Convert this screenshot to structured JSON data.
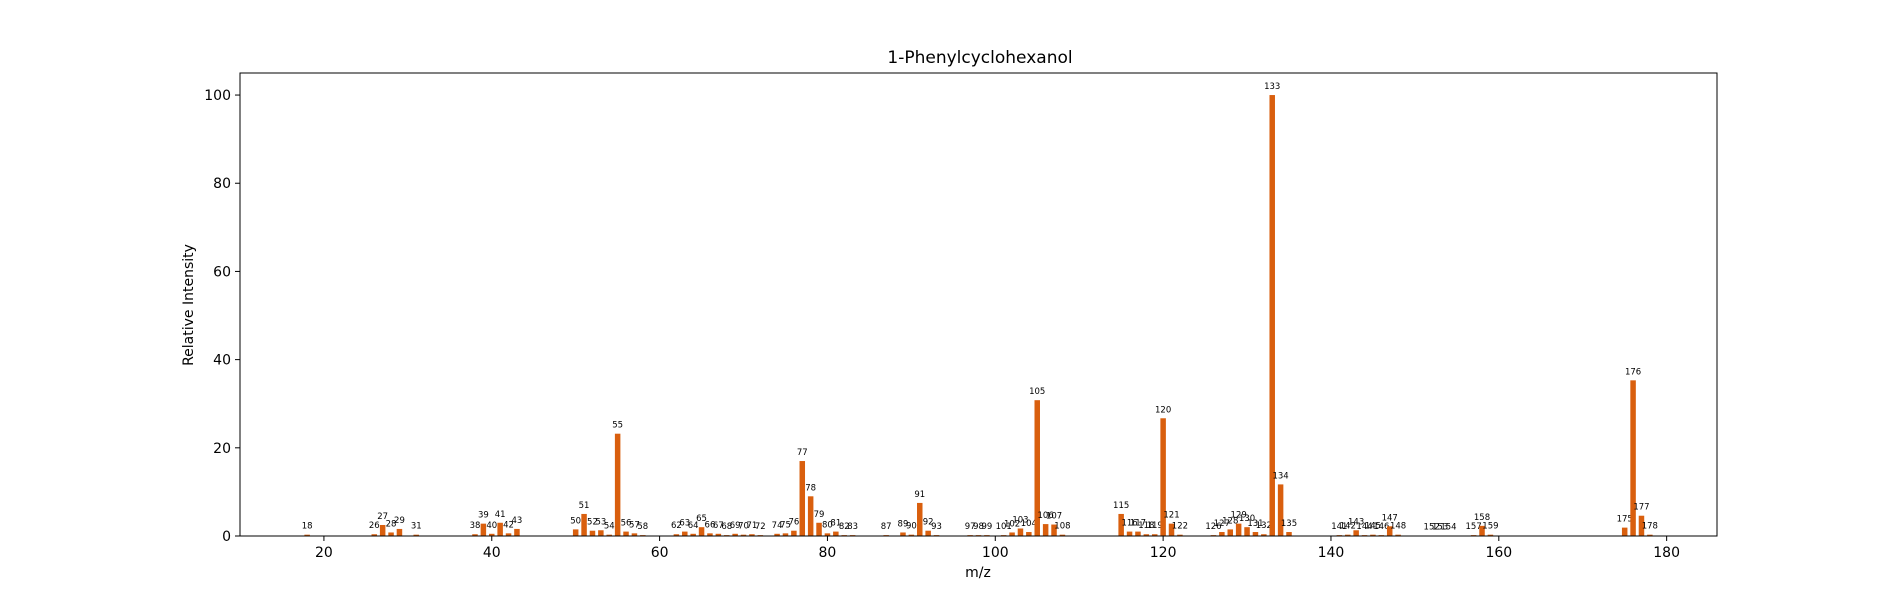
{
  "chart_data": {
    "type": "bar",
    "title": "1-Phenylcyclohexanol",
    "xlabel": "m/z",
    "ylabel": "Relative Intensity",
    "xlim": [
      10,
      186
    ],
    "ylim": [
      0,
      105
    ],
    "xticks": [
      20,
      40,
      60,
      80,
      100,
      120,
      140,
      160,
      180
    ],
    "yticks": [
      0,
      20,
      40,
      60,
      80,
      100
    ],
    "bar_color": "#d95f0e",
    "grid": false,
    "legend": "none",
    "points": [
      {
        "x": 18,
        "y": 0.3
      },
      {
        "x": 26,
        "y": 0.4
      },
      {
        "x": 27,
        "y": 2.5
      },
      {
        "x": 28,
        "y": 0.8
      },
      {
        "x": 29,
        "y": 1.6
      },
      {
        "x": 31,
        "y": 0.3
      },
      {
        "x": 38,
        "y": 0.4
      },
      {
        "x": 39,
        "y": 2.8
      },
      {
        "x": 40,
        "y": 0.5
      },
      {
        "x": 41,
        "y": 3.0
      },
      {
        "x": 42,
        "y": 0.6
      },
      {
        "x": 43,
        "y": 1.6
      },
      {
        "x": 50,
        "y": 1.5
      },
      {
        "x": 51,
        "y": 5.0
      },
      {
        "x": 52,
        "y": 1.2
      },
      {
        "x": 53,
        "y": 1.3
      },
      {
        "x": 54,
        "y": 0.3
      },
      {
        "x": 55,
        "y": 23.2
      },
      {
        "x": 56,
        "y": 1.0
      },
      {
        "x": 57,
        "y": 0.6
      },
      {
        "x": 58,
        "y": 0.2
      },
      {
        "x": 62,
        "y": 0.4
      },
      {
        "x": 63,
        "y": 1.0
      },
      {
        "x": 64,
        "y": 0.5
      },
      {
        "x": 65,
        "y": 2.0
      },
      {
        "x": 66,
        "y": 0.6
      },
      {
        "x": 67,
        "y": 0.5
      },
      {
        "x": 68,
        "y": 0.2
      },
      {
        "x": 69,
        "y": 0.5
      },
      {
        "x": 70,
        "y": 0.3
      },
      {
        "x": 71,
        "y": 0.4
      },
      {
        "x": 72,
        "y": 0.2
      },
      {
        "x": 74,
        "y": 0.5
      },
      {
        "x": 75,
        "y": 0.6
      },
      {
        "x": 76,
        "y": 1.2
      },
      {
        "x": 77,
        "y": 17.0
      },
      {
        "x": 78,
        "y": 9.0
      },
      {
        "x": 79,
        "y": 3.0
      },
      {
        "x": 80,
        "y": 0.6
      },
      {
        "x": 81,
        "y": 1.0
      },
      {
        "x": 82,
        "y": 0.2
      },
      {
        "x": 83,
        "y": 0.2
      },
      {
        "x": 87,
        "y": 0.2
      },
      {
        "x": 89,
        "y": 0.8
      },
      {
        "x": 90,
        "y": 0.3
      },
      {
        "x": 91,
        "y": 7.5
      },
      {
        "x": 92,
        "y": 1.2
      },
      {
        "x": 93,
        "y": 0.2
      },
      {
        "x": 97,
        "y": 0.2
      },
      {
        "x": 98,
        "y": 0.2
      },
      {
        "x": 99,
        "y": 0.2
      },
      {
        "x": 101,
        "y": 0.2
      },
      {
        "x": 102,
        "y": 0.8
      },
      {
        "x": 103,
        "y": 1.7
      },
      {
        "x": 104,
        "y": 0.9
      },
      {
        "x": 105,
        "y": 30.8
      },
      {
        "x": 106,
        "y": 2.7
      },
      {
        "x": 107,
        "y": 2.6
      },
      {
        "x": 108,
        "y": 0.3
      },
      {
        "x": 115,
        "y": 5.0
      },
      {
        "x": 116,
        "y": 1.0
      },
      {
        "x": 117,
        "y": 1.0
      },
      {
        "x": 118,
        "y": 0.4
      },
      {
        "x": 119,
        "y": 0.4
      },
      {
        "x": 120,
        "y": 26.7
      },
      {
        "x": 121,
        "y": 2.8
      },
      {
        "x": 122,
        "y": 0.3
      },
      {
        "x": 126,
        "y": 0.2
      },
      {
        "x": 127,
        "y": 0.9
      },
      {
        "x": 128,
        "y": 1.5
      },
      {
        "x": 129,
        "y": 2.8
      },
      {
        "x": 130,
        "y": 2.0
      },
      {
        "x": 131,
        "y": 0.9
      },
      {
        "x": 132,
        "y": 0.4
      },
      {
        "x": 133,
        "y": 100
      },
      {
        "x": 134,
        "y": 11.7
      },
      {
        "x": 135,
        "y": 0.9
      },
      {
        "x": 141,
        "y": 0.2
      },
      {
        "x": 142,
        "y": 0.3
      },
      {
        "x": 143,
        "y": 1.3
      },
      {
        "x": 144,
        "y": 0.2
      },
      {
        "x": 145,
        "y": 0.3
      },
      {
        "x": 146,
        "y": 0.2
      },
      {
        "x": 147,
        "y": 2.2
      },
      {
        "x": 148,
        "y": 0.3
      },
      {
        "x": 152,
        "y": 0.1
      },
      {
        "x": 153,
        "y": 0.1
      },
      {
        "x": 154,
        "y": 0.1
      },
      {
        "x": 157,
        "y": 0.2
      },
      {
        "x": 158,
        "y": 2.3
      },
      {
        "x": 159,
        "y": 0.3
      },
      {
        "x": 175,
        "y": 1.9
      },
      {
        "x": 176,
        "y": 35.3
      },
      {
        "x": 177,
        "y": 4.6
      },
      {
        "x": 178,
        "y": 0.3
      }
    ]
  }
}
